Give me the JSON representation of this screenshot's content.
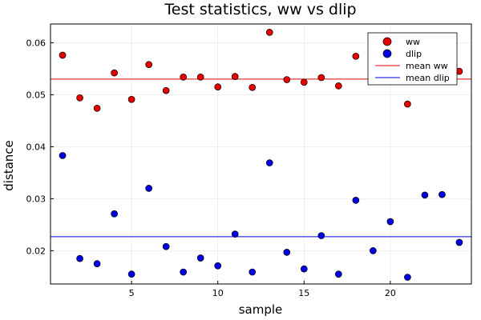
{
  "chart_data": {
    "type": "scatter",
    "title": "Test statistics, ww vs dlip",
    "xlabel": "sample",
    "ylabel": "distance",
    "xlim": [
      0.3,
      24.7
    ],
    "ylim": [
      0.0136,
      0.0636
    ],
    "xticks": [
      5,
      10,
      15,
      20
    ],
    "xtick_labels": [
      "5",
      "10",
      "15",
      "20"
    ],
    "yticks": [
      0.02,
      0.03,
      0.04,
      0.05,
      0.06
    ],
    "ytick_labels": [
      "0.02",
      "0.03",
      "0.04",
      "0.05",
      "0.06"
    ],
    "grid": true,
    "legend_position": "top-right",
    "series": [
      {
        "name": "ww",
        "kind": "scatter",
        "color": "#e60000",
        "x": [
          1,
          2,
          3,
          4,
          5,
          6,
          7,
          8,
          9,
          10,
          11,
          12,
          13,
          14,
          15,
          16,
          17,
          18,
          19,
          20,
          21,
          22,
          23,
          24
        ],
        "y": [
          0.0576,
          0.0494,
          0.0474,
          0.0542,
          0.0491,
          0.0558,
          0.0508,
          0.0534,
          0.0534,
          0.0515,
          0.0535,
          0.0514,
          0.062,
          0.0529,
          0.0524,
          0.0533,
          0.0517,
          0.0574,
          0.0563,
          0.0555,
          0.0482,
          0.0548,
          0.0548,
          0.0545
        ]
      },
      {
        "name": "dlip",
        "kind": "scatter",
        "color": "#0000e6",
        "x": [
          1,
          2,
          3,
          4,
          5,
          6,
          7,
          8,
          9,
          10,
          11,
          12,
          13,
          14,
          15,
          16,
          17,
          18,
          19,
          20,
          21,
          22,
          23,
          24
        ],
        "y": [
          0.0383,
          0.0185,
          0.0175,
          0.0271,
          0.0155,
          0.032,
          0.0208,
          0.0159,
          0.0186,
          0.0171,
          0.0232,
          0.0159,
          0.0369,
          0.0197,
          0.0165,
          0.0229,
          0.0155,
          0.0297,
          0.02,
          0.0256,
          0.0149,
          0.0307,
          0.0308,
          0.0216
        ]
      },
      {
        "name": "mean ww",
        "kind": "hline",
        "color": "#e60000",
        "value": 0.053
      },
      {
        "name": "mean dlip",
        "kind": "hline",
        "color": "#0000e6",
        "value": 0.0227
      }
    ]
  }
}
